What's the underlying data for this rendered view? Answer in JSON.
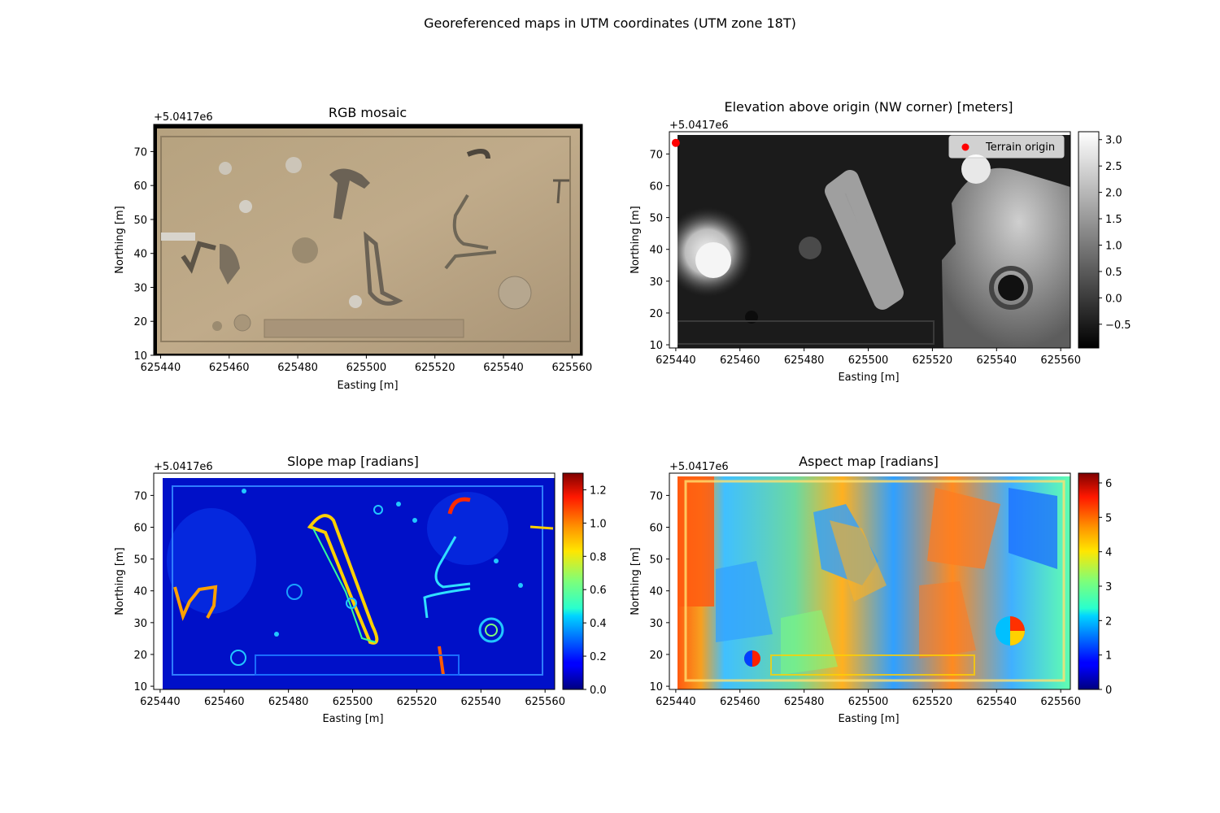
{
  "figure": {
    "suptitle": "Georeferenced maps in UTM coordinates (UTM zone 18T)"
  },
  "chart_data": [
    {
      "type": "heatmap",
      "id": "rgb",
      "title": "RGB mosaic",
      "xlabel": "Easting [m]",
      "ylabel": "Northing [m]",
      "y_offset_label": "+5.0417e6",
      "xlim": [
        625438,
        625563
      ],
      "ylim": [
        10,
        78
      ],
      "xticks": [
        625440,
        625460,
        625480,
        625500,
        625520,
        625540,
        625560
      ],
      "yticks": [
        10,
        20,
        30,
        40,
        50,
        60,
        70
      ],
      "grid": false,
      "colormap": "rgb image"
    },
    {
      "type": "heatmap",
      "id": "elevation",
      "title": "Elevation above origin (NW corner) [meters]",
      "xlabel": "Easting [m]",
      "ylabel": "Northing [m]",
      "y_offset_label": "+5.0417e6",
      "xlim": [
        625438,
        625563
      ],
      "ylim": [
        9,
        77
      ],
      "xticks": [
        625440,
        625460,
        625480,
        625500,
        625520,
        625540,
        625560
      ],
      "yticks": [
        10,
        20,
        30,
        40,
        50,
        60,
        70
      ],
      "grid": false,
      "colormap": "gray",
      "colorbar": {
        "ticks": [
          -0.5,
          0.0,
          0.5,
          1.0,
          1.5,
          2.0,
          2.5,
          3.0
        ],
        "tick_labels": [
          "−0.5",
          "0.0",
          "0.5",
          "1.0",
          "1.5",
          "2.0",
          "2.5",
          "3.0"
        ],
        "min": -0.95,
        "max": 3.15
      },
      "points": [
        {
          "name": "Terrain origin",
          "x": 625440,
          "y": 73.5,
          "color": "#ff0000"
        }
      ],
      "legend": {
        "position": "top-right",
        "label": "Terrain origin"
      }
    },
    {
      "type": "heatmap",
      "id": "slope",
      "title": "Slope map [radians]",
      "xlabel": "Easting [m]",
      "ylabel": "Northing [m]",
      "y_offset_label": "+5.0417e6",
      "xlim": [
        625438,
        625563
      ],
      "ylim": [
        9,
        77
      ],
      "xticks": [
        625440,
        625460,
        625480,
        625500,
        625520,
        625540,
        625560
      ],
      "yticks": [
        10,
        20,
        30,
        40,
        50,
        60,
        70
      ],
      "grid": false,
      "colormap": "jet",
      "colorbar": {
        "ticks": [
          0.0,
          0.2,
          0.4,
          0.6,
          0.8,
          1.0,
          1.2
        ],
        "tick_labels": [
          "0.0",
          "0.2",
          "0.4",
          "0.6",
          "0.8",
          "1.0",
          "1.2"
        ],
        "min": 0,
        "max": 1.3
      }
    },
    {
      "type": "heatmap",
      "id": "aspect",
      "title": "Aspect map [radians]",
      "xlabel": "Easting [m]",
      "ylabel": "Northing [m]",
      "y_offset_label": "+5.0417e6",
      "xlim": [
        625438,
        625563
      ],
      "ylim": [
        9,
        77
      ],
      "xticks": [
        625440,
        625460,
        625480,
        625500,
        625520,
        625540,
        625560
      ],
      "yticks": [
        10,
        20,
        30,
        40,
        50,
        60,
        70
      ],
      "grid": false,
      "colormap": "jet",
      "colorbar": {
        "ticks": [
          0,
          1,
          2,
          3,
          4,
          5,
          6
        ],
        "tick_labels": [
          "0",
          "1",
          "2",
          "3",
          "4",
          "5",
          "6"
        ],
        "min": 0,
        "max": 6.283
      }
    }
  ]
}
